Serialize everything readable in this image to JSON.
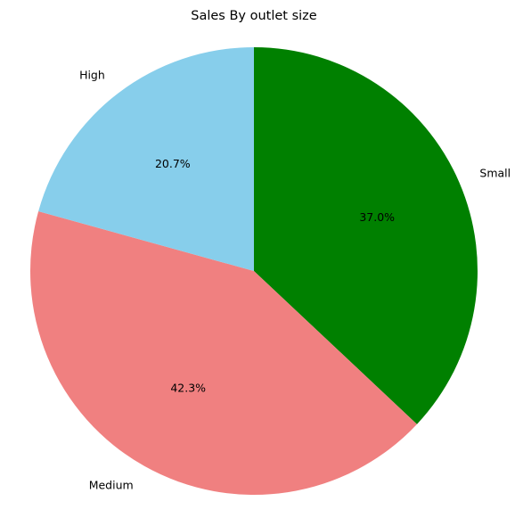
{
  "chart_data": {
    "type": "pie",
    "title": "Sales By outlet size",
    "start_angle_deg": 90,
    "direction": "clockwise",
    "slices": [
      {
        "label": "Small",
        "value": 37.0,
        "pct_label": "37.0%",
        "color": "#008000"
      },
      {
        "label": "Medium",
        "value": 42.3,
        "pct_label": "42.3%",
        "color": "#f08080"
      },
      {
        "label": "High",
        "value": 20.7,
        "pct_label": "20.7%",
        "color": "#87ceeb"
      }
    ]
  }
}
